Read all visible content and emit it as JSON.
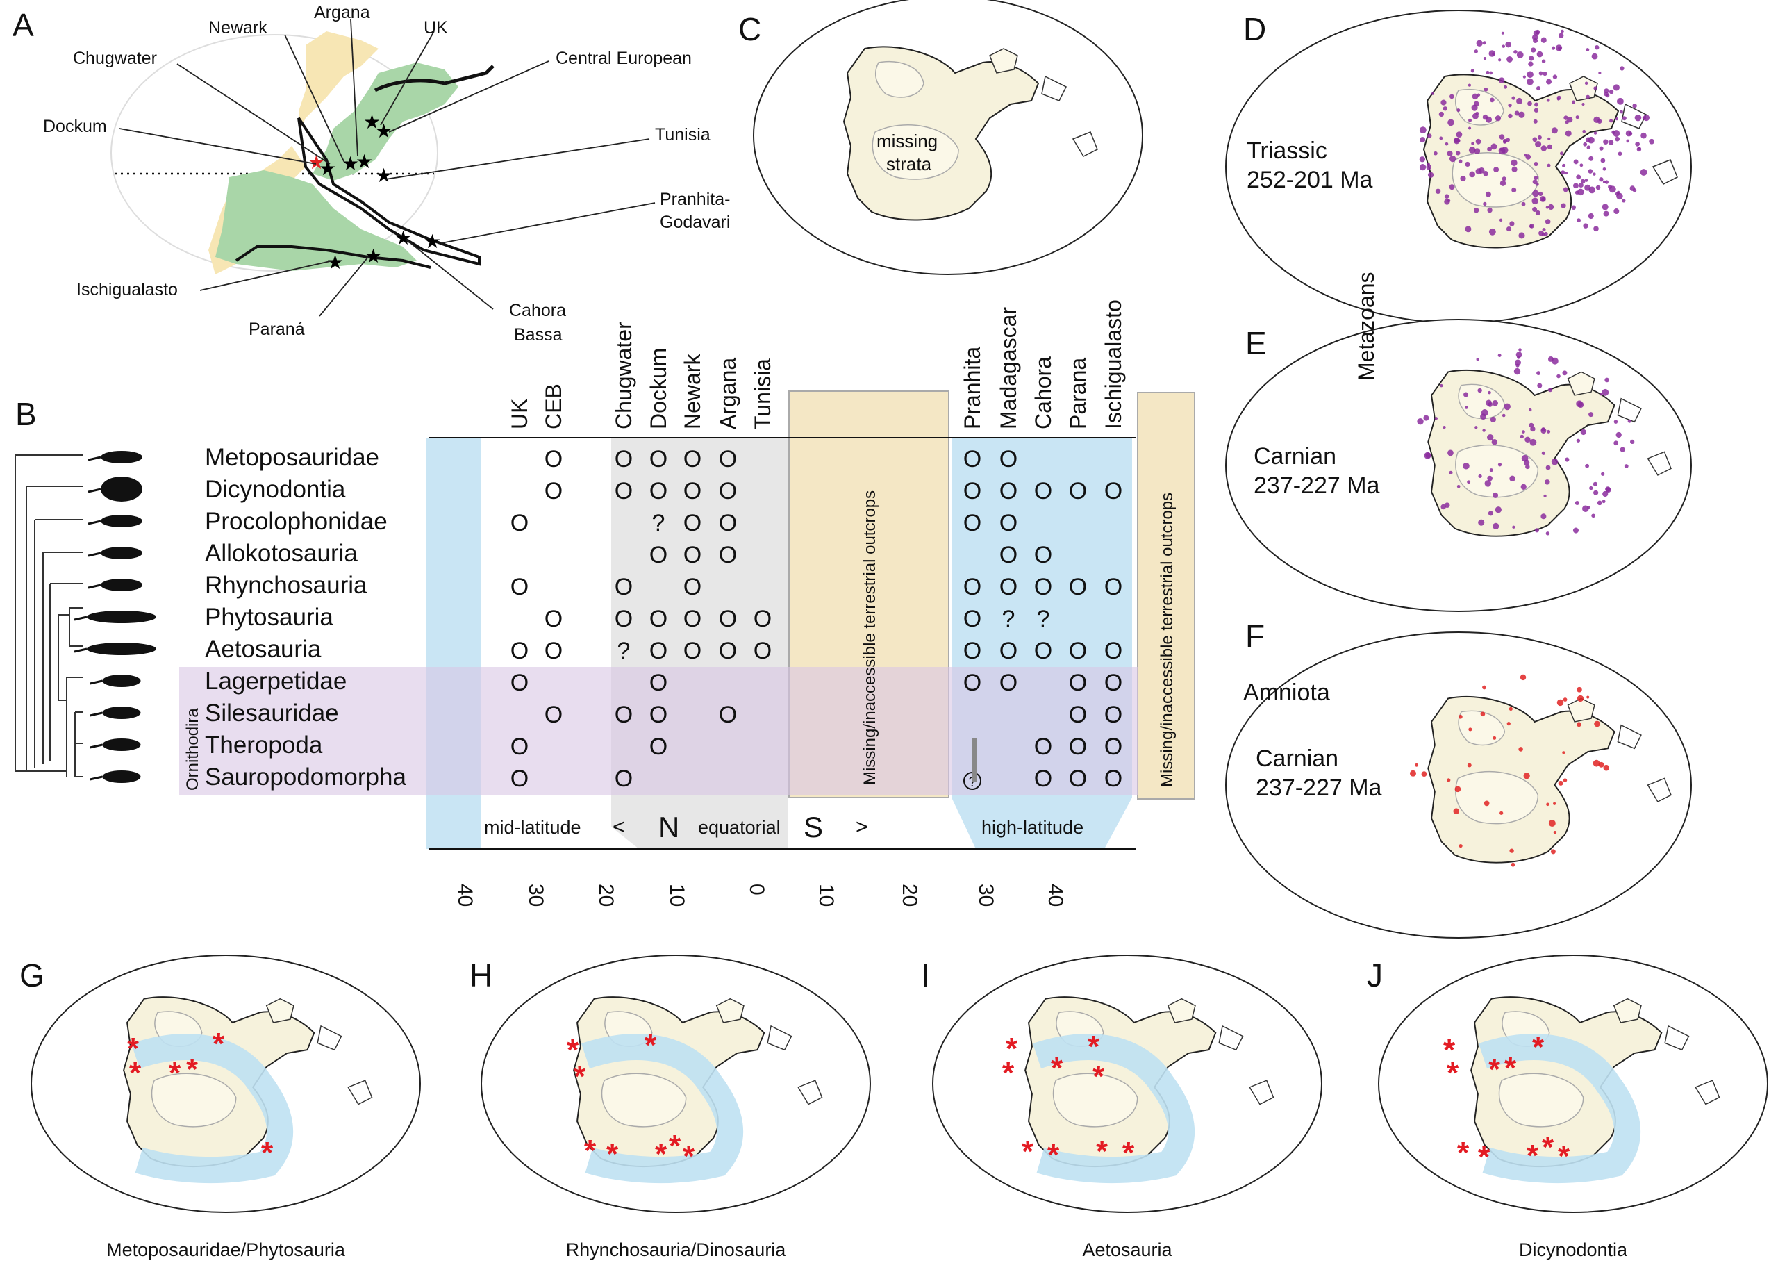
{
  "colors": {
    "pangea_north": "#f7e6b4",
    "pangea_south_green": "#a9d6a8",
    "blue_band": "#bfe1f2",
    "yellow_band": "#f4e7c5",
    "purple_band": "#e2d5ea",
    "gray_band": "#e3e3e3",
    "craton": "#f6f2dc",
    "fossil_purple": "#8b2d9e",
    "fossil_red": "#e02323",
    "asterisk_red": "#e31b23"
  },
  "panel_a": {
    "letter": "A",
    "localities": [
      "Newark",
      "Argana",
      "UK",
      "Chugwater",
      "Central European",
      "Dockum",
      "Tunisia",
      "Pranhita-",
      "Godavari",
      "Ischigualasto",
      "Paraná",
      "Cahora",
      "Bassa"
    ]
  },
  "panel_b": {
    "letter": "B",
    "columns_north": [
      "UK",
      "CEB",
      "Chugwater",
      "Dockum",
      "Newark",
      "Argana",
      "Tunisia"
    ],
    "columns_south": [
      "Pranhita",
      "Madagascar",
      "Cahora",
      "Parana",
      "Ischigualasto"
    ],
    "missing_label": "Missing/inaccessible terrestrial outcrops",
    "clade_group_label": "Ornithodira",
    "taxa": [
      "Metoposauridae",
      "Dicynodontia",
      "Procolophonidae",
      "Allokotosauria",
      "Rhynchosauria",
      "Phytosauria",
      "Aetosauria",
      "Lagerpetidae",
      "Silesauridae",
      "Theropoda",
      "Sauropodomorpha"
    ],
    "occurrences": [
      [
        "",
        "O",
        "O",
        "O",
        "O",
        "O",
        "",
        "O",
        "O",
        "",
        "",
        ""
      ],
      [
        "",
        "O",
        "O",
        "O",
        "O",
        "O",
        "",
        "O",
        "O",
        "O",
        "O",
        "O"
      ],
      [
        "O",
        "",
        "",
        "?",
        "O",
        "O",
        "",
        "O",
        "O",
        "",
        "",
        ""
      ],
      [
        "",
        "",
        "",
        "O",
        "O",
        "O",
        "",
        "",
        "O",
        "O",
        "",
        ""
      ],
      [
        "O",
        "",
        "O",
        "",
        "O",
        "",
        "",
        "O",
        "O",
        "O",
        "O",
        "O"
      ],
      [
        "",
        "O",
        "O",
        "O",
        "O",
        "O",
        "O",
        "O",
        "?",
        "?",
        "",
        ""
      ],
      [
        "O",
        "O",
        "?",
        "O",
        "O",
        "O",
        "O",
        "O",
        "O",
        "O",
        "O",
        "O"
      ],
      [
        "O",
        "",
        "",
        "O",
        "",
        "",
        "",
        "O",
        "O",
        "",
        "O",
        "O"
      ],
      [
        "",
        "O",
        "O",
        "O",
        "",
        "O",
        "",
        "",
        "",
        "",
        "O",
        "O"
      ],
      [
        "O",
        "",
        "",
        "O",
        "",
        "",
        "",
        "",
        "",
        "O",
        "O",
        "O"
      ],
      [
        "O",
        "",
        "O",
        "",
        "",
        "",
        "",
        "?",
        "",
        "O",
        "O",
        "O"
      ]
    ],
    "axis_captions": [
      "mid-latitude",
      "<",
      "N",
      "equatorial",
      "S",
      ">",
      "high-latitude"
    ],
    "axis_ticks": [
      "40",
      "30",
      "20",
      "10",
      "0",
      "10",
      "20",
      "30",
      "40"
    ]
  },
  "panel_c": {
    "letter": "C",
    "label_line1": "missing",
    "label_line2": "strata"
  },
  "panel_d": {
    "letter": "D",
    "label_line1": "Triassic",
    "label_line2": "252-201 Ma"
  },
  "panel_e": {
    "letter": "E",
    "label_line1": "Carnian",
    "label_line2": "237-227 Ma"
  },
  "metazoans_label": "Metazoans",
  "panel_f": {
    "letter": "F",
    "label_group": "Amniota",
    "label_line1": "Carnian",
    "label_line2": "237-227 Ma"
  },
  "bottom_panels": [
    {
      "letter": "G",
      "caption": "Metoposauridae/Phytosauria"
    },
    {
      "letter": "H",
      "caption": "Rhynchosauria/Dinosauria"
    },
    {
      "letter": "I",
      "caption": "Aetosauria"
    },
    {
      "letter": "J",
      "caption": "Dicynodontia"
    }
  ]
}
